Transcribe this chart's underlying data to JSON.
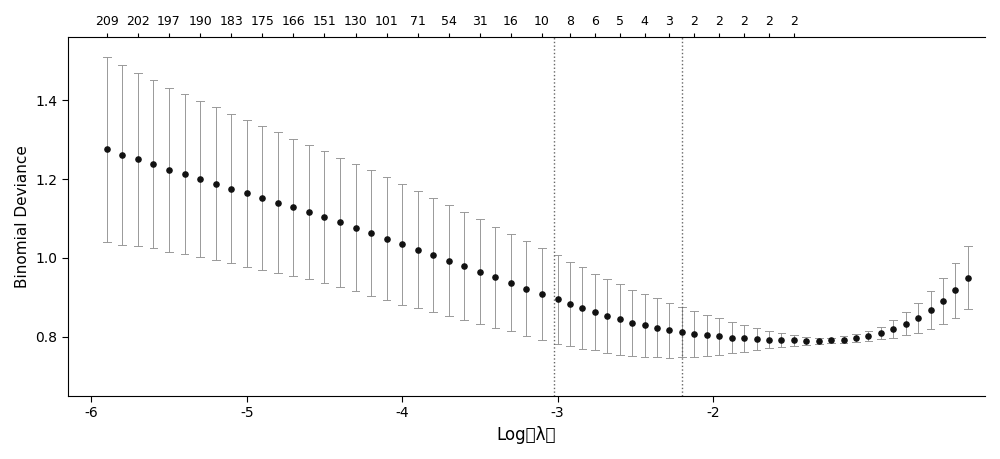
{
  "top_labels": [
    209,
    202,
    197,
    190,
    183,
    175,
    166,
    151,
    130,
    101,
    71,
    54,
    31,
    16,
    10,
    8,
    6,
    5,
    4,
    3,
    2,
    2,
    2,
    2,
    2
  ],
  "log_lambda": [
    -5.9,
    -5.8,
    -5.7,
    -5.6,
    -5.5,
    -5.4,
    -5.3,
    -5.2,
    -5.1,
    -5.0,
    -4.9,
    -4.8,
    -4.7,
    -4.6,
    -4.5,
    -4.4,
    -4.3,
    -4.2,
    -4.1,
    -4.0,
    -3.9,
    -3.8,
    -3.7,
    -3.6,
    -3.5,
    -3.4,
    -3.3,
    -3.2,
    -3.1,
    -3.0,
    -2.92,
    -2.84,
    -2.76,
    -2.68,
    -2.6,
    -2.52,
    -2.44,
    -2.36,
    -2.28,
    -2.2,
    -2.12,
    -2.04,
    -1.96,
    -1.88,
    -1.8,
    -1.72,
    -1.64,
    -1.56,
    -1.48,
    -1.4,
    -1.32,
    -1.24,
    -1.16,
    -1.08,
    -1.0,
    -0.92,
    -0.84,
    -0.76,
    -0.68,
    -0.6,
    -0.52,
    -0.44,
    -0.36
  ],
  "mean_deviance": [
    1.275,
    1.262,
    1.25,
    1.237,
    1.224,
    1.212,
    1.2,
    1.188,
    1.176,
    1.164,
    1.152,
    1.14,
    1.128,
    1.116,
    1.103,
    1.09,
    1.077,
    1.063,
    1.049,
    1.035,
    1.021,
    1.007,
    0.993,
    0.979,
    0.965,
    0.951,
    0.937,
    0.922,
    0.908,
    0.895,
    0.884,
    0.873,
    0.863,
    0.853,
    0.844,
    0.836,
    0.829,
    0.823,
    0.817,
    0.812,
    0.808,
    0.804,
    0.801,
    0.798,
    0.796,
    0.794,
    0.793,
    0.792,
    0.791,
    0.79,
    0.79,
    0.791,
    0.793,
    0.797,
    0.802,
    0.81,
    0.82,
    0.833,
    0.849,
    0.868,
    0.891,
    0.918,
    0.95
  ],
  "se_upper": [
    1.51,
    1.49,
    1.47,
    1.45,
    1.432,
    1.415,
    1.398,
    1.382,
    1.366,
    1.35,
    1.334,
    1.318,
    1.302,
    1.286,
    1.27,
    1.254,
    1.238,
    1.222,
    1.205,
    1.188,
    1.17,
    1.152,
    1.134,
    1.116,
    1.098,
    1.079,
    1.06,
    1.042,
    1.025,
    1.008,
    0.991,
    0.976,
    0.96,
    0.946,
    0.933,
    0.92,
    0.908,
    0.898,
    0.887,
    0.876,
    0.866,
    0.856,
    0.847,
    0.838,
    0.83,
    0.822,
    0.815,
    0.809,
    0.804,
    0.8,
    0.797,
    0.798,
    0.801,
    0.806,
    0.814,
    0.826,
    0.842,
    0.862,
    0.887,
    0.916,
    0.95,
    0.988,
    1.03
  ],
  "se_lower": [
    1.04,
    1.034,
    1.03,
    1.024,
    1.016,
    1.009,
    1.002,
    0.994,
    0.986,
    0.978,
    0.97,
    0.962,
    0.954,
    0.946,
    0.936,
    0.926,
    0.916,
    0.904,
    0.893,
    0.882,
    0.872,
    0.862,
    0.852,
    0.842,
    0.832,
    0.823,
    0.814,
    0.802,
    0.791,
    0.782,
    0.777,
    0.77,
    0.766,
    0.76,
    0.755,
    0.752,
    0.75,
    0.748,
    0.747,
    0.748,
    0.75,
    0.752,
    0.755,
    0.758,
    0.762,
    0.766,
    0.771,
    0.775,
    0.778,
    0.78,
    0.783,
    0.784,
    0.785,
    0.788,
    0.79,
    0.794,
    0.798,
    0.804,
    0.811,
    0.82,
    0.832,
    0.848,
    0.87
  ],
  "vline1": -3.02,
  "vline2": -2.2,
  "xlim": [
    -6.15,
    -0.25
  ],
  "ylim": [
    0.65,
    1.56
  ],
  "xlabel": "Log（λ）",
  "ylabel": "Binomial Deviance",
  "yticks": [
    0.8,
    1.0,
    1.2,
    1.4
  ],
  "xticks": [
    -6,
    -5,
    -4,
    -3,
    -2
  ],
  "top_tick_positions": [
    -5.9,
    -5.7,
    -5.5,
    -5.3,
    -5.1,
    -4.9,
    -4.7,
    -4.5,
    -4.3,
    -4.1,
    -3.9,
    -3.7,
    -3.5,
    -3.3,
    -3.1,
    -2.92,
    -2.76,
    -2.6,
    -2.44,
    -2.28,
    -2.12,
    -1.96,
    -1.8,
    -1.64,
    -1.48
  ],
  "dot_color": "#111111",
  "error_bar_color": "#999999",
  "vline_color": "#666666",
  "bg_color": "#ffffff"
}
